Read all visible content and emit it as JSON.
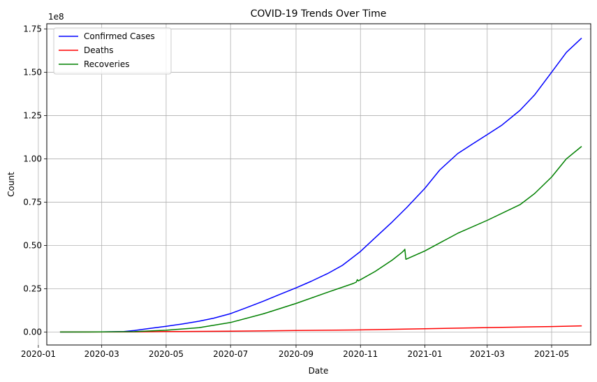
{
  "chart_data": {
    "type": "line",
    "title": "COVID-19 Trends Over Time",
    "xlabel": "Date",
    "ylabel": "Count",
    "y_offset_label": "1e8",
    "grid": true,
    "legend_position": "upper-left",
    "xlim": [
      "2020-01-09",
      "2021-06-07"
    ],
    "ylim": [
      -0.075,
      1.78
    ],
    "x_ticks": [
      {
        "date": "2020-01-01",
        "label": "2020-01"
      },
      {
        "date": "2020-03-01",
        "label": "2020-03"
      },
      {
        "date": "2020-05-01",
        "label": "2020-05"
      },
      {
        "date": "2020-07-01",
        "label": "2020-07"
      },
      {
        "date": "2020-09-01",
        "label": "2020-09"
      },
      {
        "date": "2020-11-01",
        "label": "2020-11"
      },
      {
        "date": "2021-01-01",
        "label": "2021-01"
      },
      {
        "date": "2021-03-01",
        "label": "2021-03"
      },
      {
        "date": "2021-05-01",
        "label": "2021-05"
      }
    ],
    "y_ticks": [
      {
        "value": 0.0,
        "label": "0.00"
      },
      {
        "value": 0.25,
        "label": "0.25"
      },
      {
        "value": 0.5,
        "label": "0.50"
      },
      {
        "value": 0.75,
        "label": "0.75"
      },
      {
        "value": 1.0,
        "label": "1.00"
      },
      {
        "value": 1.25,
        "label": "1.25"
      },
      {
        "value": 1.5,
        "label": "1.50"
      },
      {
        "value": 1.75,
        "label": "1.75"
      }
    ],
    "series": [
      {
        "name": "Confirmed Cases",
        "color": "#0000ff",
        "points": [
          [
            "2020-01-22",
            0.0
          ],
          [
            "2020-03-01",
            0.001
          ],
          [
            "2020-03-22",
            0.003
          ],
          [
            "2020-04-01",
            0.009
          ],
          [
            "2020-04-15",
            0.02
          ],
          [
            "2020-05-01",
            0.033
          ],
          [
            "2020-05-15",
            0.045
          ],
          [
            "2020-06-01",
            0.062
          ],
          [
            "2020-06-15",
            0.08
          ],
          [
            "2020-07-01",
            0.106
          ],
          [
            "2020-07-15",
            0.138
          ],
          [
            "2020-08-01",
            0.178
          ],
          [
            "2020-08-15",
            0.213
          ],
          [
            "2020-09-01",
            0.255
          ],
          [
            "2020-09-15",
            0.292
          ],
          [
            "2020-10-01",
            0.338
          ],
          [
            "2020-10-15",
            0.385
          ],
          [
            "2020-11-01",
            0.465
          ],
          [
            "2020-11-15",
            0.545
          ],
          [
            "2020-12-01",
            0.635
          ],
          [
            "2020-12-15",
            0.72
          ],
          [
            "2021-01-01",
            0.83
          ],
          [
            "2021-01-15",
            0.935
          ],
          [
            "2021-02-01",
            1.03
          ],
          [
            "2021-02-15",
            1.085
          ],
          [
            "2021-03-01",
            1.14
          ],
          [
            "2021-03-15",
            1.195
          ],
          [
            "2021-04-01",
            1.28
          ],
          [
            "2021-04-15",
            1.37
          ],
          [
            "2021-05-01",
            1.5
          ],
          [
            "2021-05-15",
            1.615
          ],
          [
            "2021-05-29",
            1.695
          ]
        ]
      },
      {
        "name": "Deaths",
        "color": "#ff0000",
        "points": [
          [
            "2020-01-22",
            0.0
          ],
          [
            "2020-04-01",
            0.0005
          ],
          [
            "2020-05-01",
            0.0023
          ],
          [
            "2020-07-01",
            0.005
          ],
          [
            "2020-09-01",
            0.0085
          ],
          [
            "2020-11-01",
            0.012
          ],
          [
            "2021-01-01",
            0.0185
          ],
          [
            "2021-03-01",
            0.0255
          ],
          [
            "2021-05-01",
            0.0315
          ],
          [
            "2021-05-29",
            0.035
          ]
        ]
      },
      {
        "name": "Recoveries",
        "color": "#008000",
        "points": [
          [
            "2020-01-22",
            0.0
          ],
          [
            "2020-03-01",
            0.0005
          ],
          [
            "2020-04-01",
            0.002
          ],
          [
            "2020-05-01",
            0.01
          ],
          [
            "2020-06-01",
            0.025
          ],
          [
            "2020-07-01",
            0.055
          ],
          [
            "2020-08-01",
            0.105
          ],
          [
            "2020-09-01",
            0.165
          ],
          [
            "2020-10-01",
            0.23
          ],
          [
            "2020-10-25",
            0.28
          ],
          [
            "2020-10-28",
            0.288
          ],
          [
            "2020-10-29",
            0.302
          ],
          [
            "2020-10-30",
            0.295
          ],
          [
            "2020-11-15",
            0.35
          ],
          [
            "2020-12-01",
            0.415
          ],
          [
            "2020-12-10",
            0.458
          ],
          [
            "2020-12-12",
            0.47
          ],
          [
            "2020-12-13",
            0.478
          ],
          [
            "2020-12-14",
            0.42
          ],
          [
            "2021-01-01",
            0.468
          ],
          [
            "2021-02-01",
            0.57
          ],
          [
            "2021-03-01",
            0.645
          ],
          [
            "2021-04-01",
            0.735
          ],
          [
            "2021-04-15",
            0.8
          ],
          [
            "2021-05-01",
            0.895
          ],
          [
            "2021-05-15",
            1.0
          ],
          [
            "2021-05-29",
            1.07
          ]
        ]
      }
    ]
  }
}
